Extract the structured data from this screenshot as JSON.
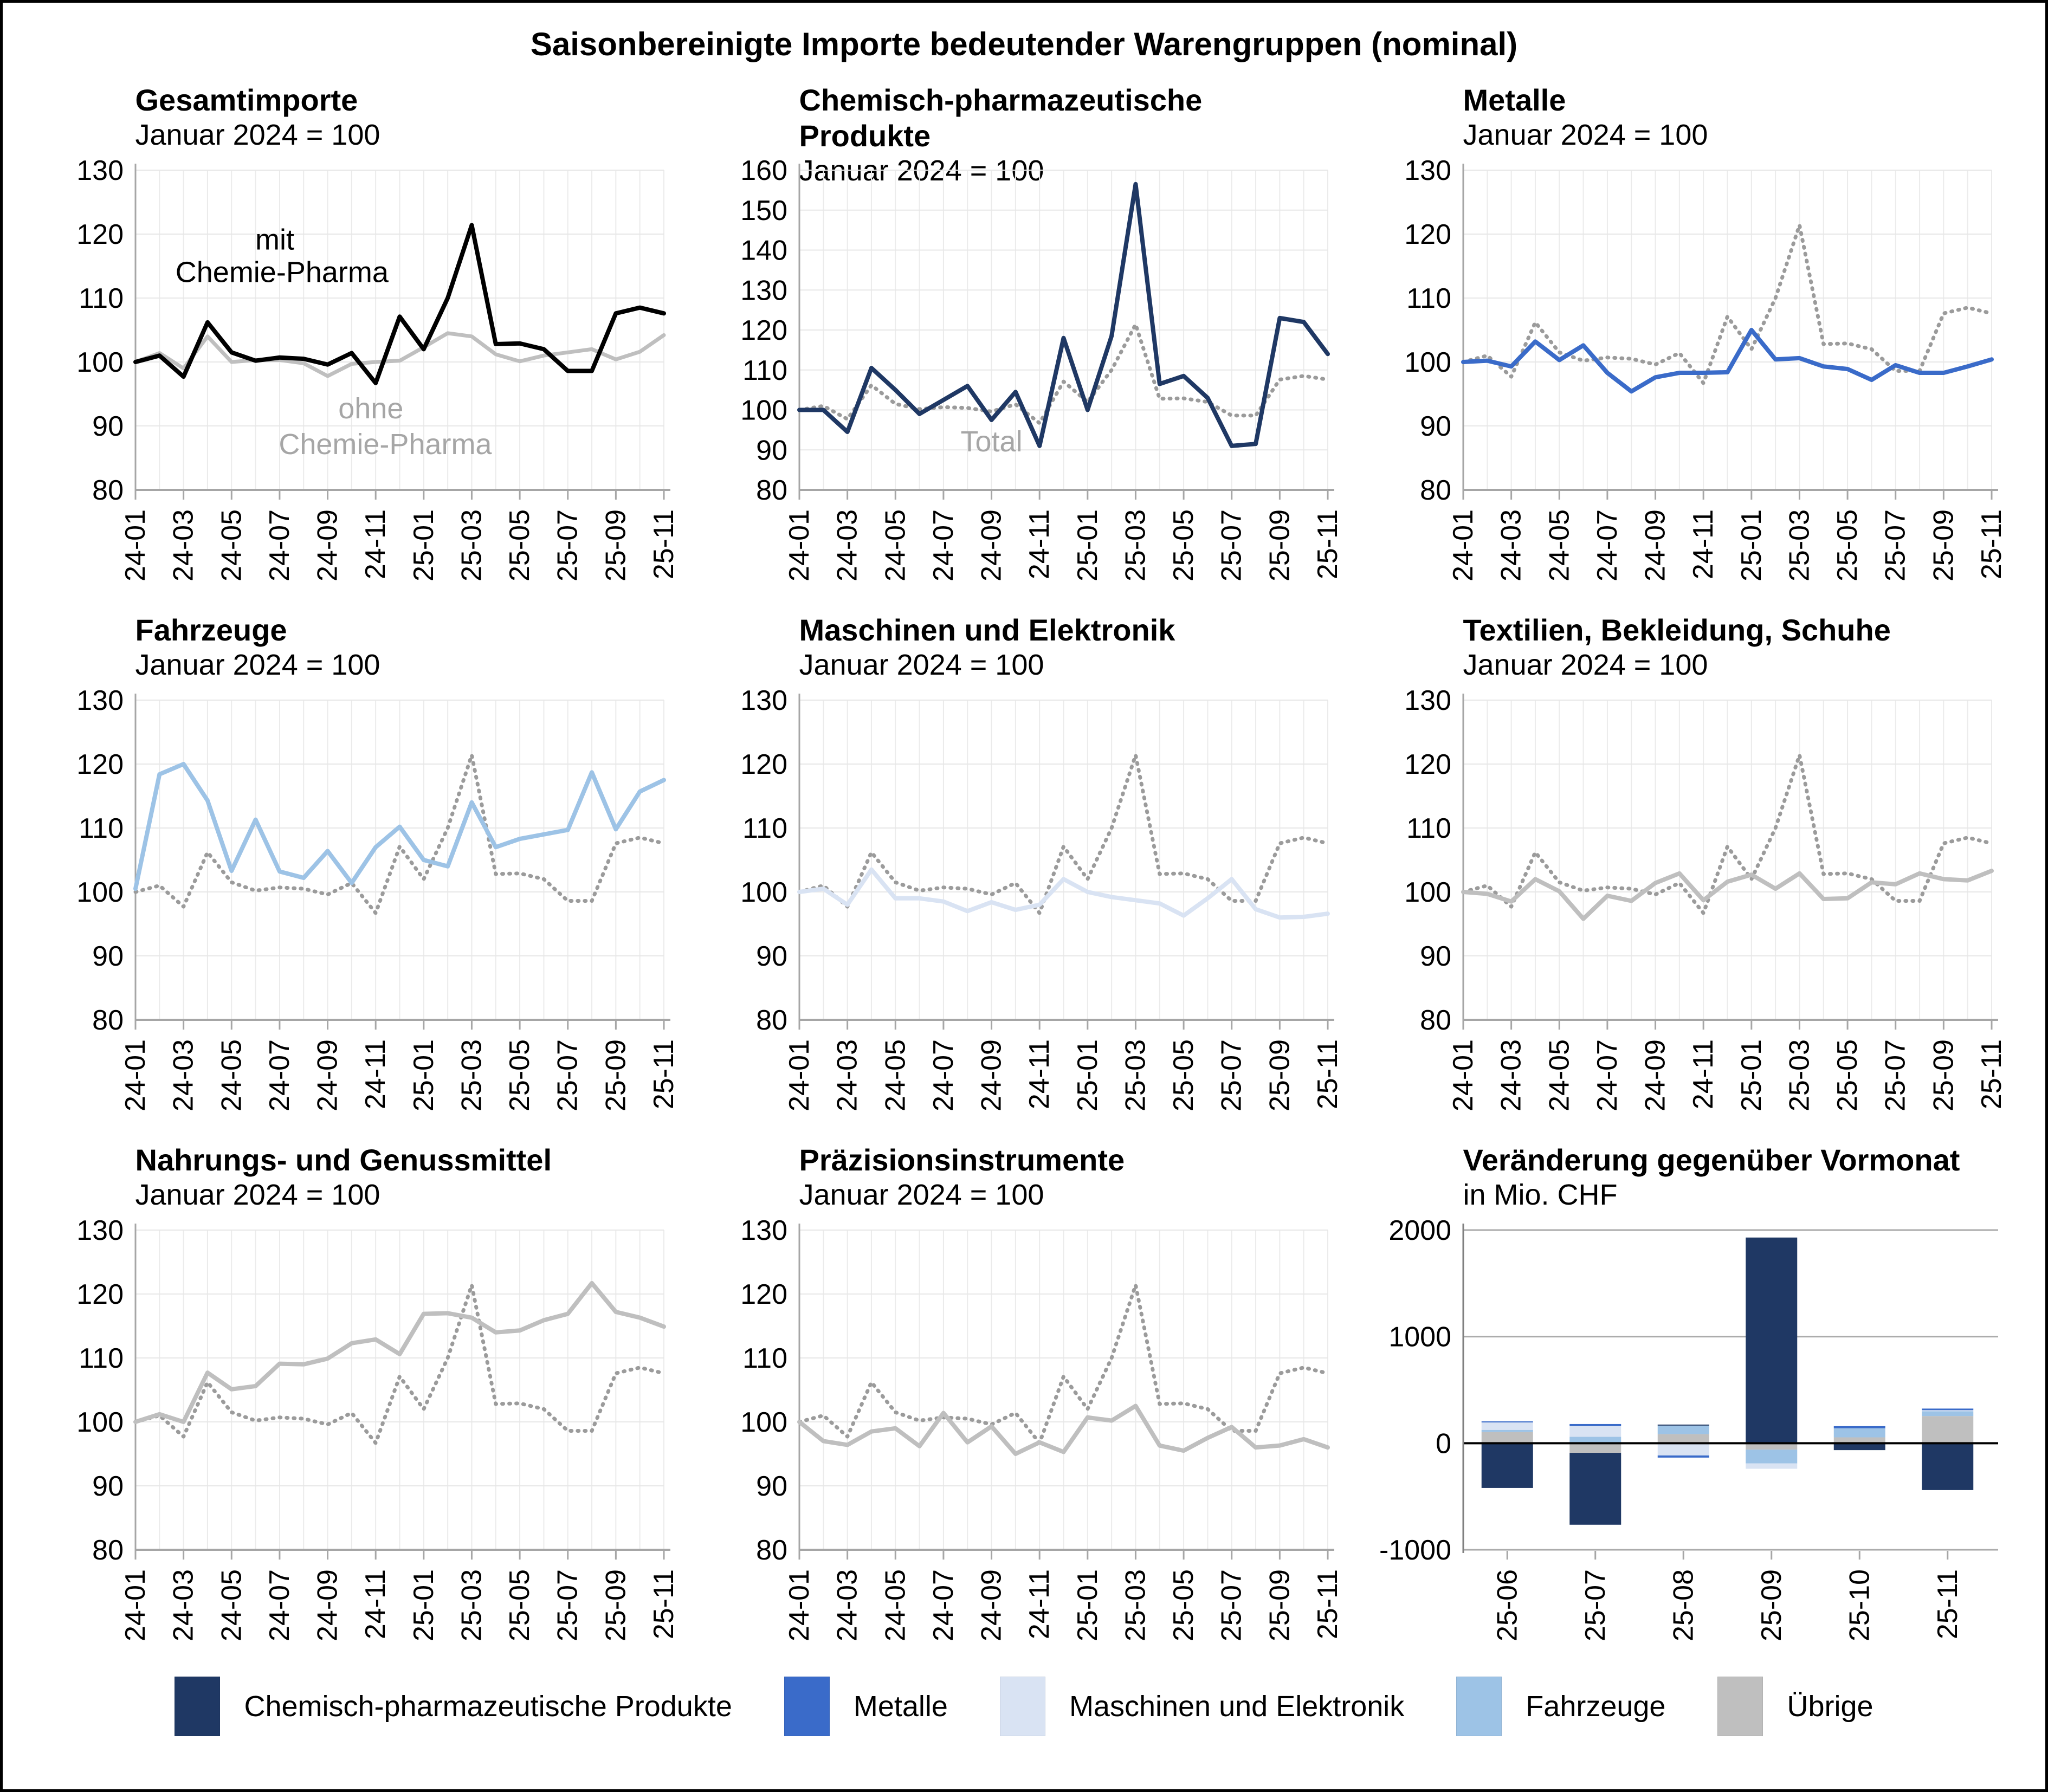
{
  "title": "Saisonbereinigte Importe bedeutender Warengruppen (nominal)",
  "months": [
    "24-01",
    "24-02",
    "24-03",
    "24-04",
    "24-05",
    "24-06",
    "24-07",
    "24-08",
    "24-09",
    "24-10",
    "24-11",
    "24-12",
    "25-01",
    "25-02",
    "25-03",
    "25-04",
    "25-05",
    "25-06",
    "25-07",
    "25-08",
    "25-09",
    "25-10",
    "25-11"
  ],
  "colors": {
    "black": "#000000",
    "navy": "#1F3864",
    "royal_blue": "#3A6BC9",
    "light_blue": "#9DC3E6",
    "pale_blue": "#D9E3F3",
    "gray": "#BFBFBF",
    "dotted_gray": "#9B9B9B",
    "annotation_gray": "#A6A6A6"
  },
  "legend": {
    "items": [
      {
        "label": "Chemisch-pharmazeutische Produkte",
        "color": "#1F3864"
      },
      {
        "label": "Metalle",
        "color": "#3A6BC9"
      },
      {
        "label": "Maschinen und Elektronik",
        "color": "#D9E3F3"
      },
      {
        "label": "Fahrzeuge",
        "color": "#9DC3E6"
      },
      {
        "label": "Übrige",
        "color": "#BFBFBF"
      }
    ]
  },
  "chart_data": [
    {
      "type": "line",
      "title": "Gesamtimporte",
      "subtitle": "Januar 2024 = 100",
      "ylim": [
        80,
        130
      ],
      "yticks": [
        80,
        90,
        100,
        110,
        120,
        130
      ],
      "series": [
        {
          "name": "ohne Chemie-Pharma",
          "color": "#BFBFBF",
          "style": "solid",
          "width": 7,
          "values": [
            100,
            101.4,
            99,
            104,
            100,
            100.3,
            100.3,
            99.8,
            97.8,
            99.7,
            100,
            100.2,
            102.3,
            104.5,
            104,
            101.2,
            100.1,
            101,
            101.5,
            102,
            100.4,
            101.6,
            104.2
          ]
        },
        {
          "name": "mit Chemie-Pharma",
          "color": "#000000",
          "style": "solid",
          "width": 8,
          "values": [
            100,
            101,
            97.7,
            106.2,
            101.5,
            100.2,
            100.7,
            100.5,
            99.6,
            101.4,
            96.7,
            107.1,
            102,
            110,
            121.4,
            102.8,
            102.9,
            102,
            98.6,
            98.6,
            107.6,
            108.5,
            107.6
          ]
        }
      ],
      "annotations": [
        {
          "text": "mit",
          "xi": 5.8,
          "y": 117.6,
          "color": "#000000"
        },
        {
          "text": "Chemie-Pharma",
          "xi": 6.1,
          "y": 112.5,
          "color": "#000000"
        },
        {
          "text": "ohne",
          "xi": 9.8,
          "y": 91.2,
          "color": "#A6A6A6"
        },
        {
          "text": "Chemie-Pharma",
          "xi": 10.4,
          "y": 85.6,
          "color": "#A6A6A6"
        }
      ]
    },
    {
      "type": "line",
      "title": "Chemisch-pharmazeutische Produkte",
      "subtitle": "Januar 2024 = 100",
      "ylim": [
        80,
        160
      ],
      "yticks": [
        80,
        90,
        100,
        110,
        120,
        130,
        140,
        150,
        160
      ],
      "series": [
        {
          "name": "Total",
          "color": "#9B9B9B",
          "style": "dotted",
          "width": 7,
          "values": [
            100,
            101,
            97.7,
            106.2,
            101.5,
            100.2,
            100.7,
            100.5,
            99.6,
            101.4,
            96.7,
            107.1,
            102,
            110,
            121.4,
            102.8,
            102.9,
            102,
            98.6,
            98.6,
            107.6,
            108.5,
            107.6
          ]
        },
        {
          "name": "Chemisch-pharmazeutische Produkte",
          "color": "#1F3864",
          "style": "solid",
          "width": 8,
          "values": [
            100,
            100,
            94.5,
            110.5,
            105,
            99,
            102.5,
            106,
            97.5,
            104.5,
            91,
            118,
            100,
            118.5,
            156.5,
            106.5,
            108.5,
            103,
            91,
            91.5,
            123,
            122,
            114
          ]
        }
      ],
      "annotations": [
        {
          "text": "Total",
          "xi": 8.0,
          "y": 89.6,
          "color": "#A6A6A6"
        }
      ]
    },
    {
      "type": "line",
      "title": "Metalle",
      "subtitle": "Januar 2024 = 100",
      "ylim": [
        80,
        130
      ],
      "yticks": [
        80,
        90,
        100,
        110,
        120,
        130
      ],
      "series": [
        {
          "name": "Total",
          "color": "#9B9B9B",
          "style": "dotted",
          "width": 7,
          "values": [
            100,
            101,
            97.7,
            106.2,
            101.5,
            100.2,
            100.7,
            100.5,
            99.6,
            101.4,
            96.7,
            107.1,
            102,
            110,
            121.4,
            102.8,
            102.9,
            102,
            98.6,
            98.6,
            107.6,
            108.5,
            107.6
          ]
        },
        {
          "name": "Metalle",
          "color": "#3A6BC9",
          "style": "solid",
          "width": 8,
          "values": [
            100,
            100.2,
            99.3,
            103.2,
            100.3,
            102.6,
            98.3,
            95.4,
            97.6,
            98.3,
            98.3,
            98.4,
            105,
            100.4,
            100.6,
            99.3,
            98.9,
            97.2,
            99.5,
            98.3,
            98.3,
            99.3,
            100.4
          ]
        }
      ],
      "annotations": []
    },
    {
      "type": "line",
      "title": "Fahrzeuge",
      "subtitle": "Januar 2024 = 100",
      "ylim": [
        80,
        130
      ],
      "yticks": [
        80,
        90,
        100,
        110,
        120,
        130
      ],
      "series": [
        {
          "name": "Total",
          "color": "#9B9B9B",
          "style": "dotted",
          "width": 7,
          "values": [
            100,
            101,
            97.7,
            106.2,
            101.5,
            100.2,
            100.7,
            100.5,
            99.6,
            101.4,
            96.7,
            107.1,
            102,
            110,
            121.4,
            102.8,
            102.9,
            102,
            98.6,
            98.6,
            107.6,
            108.5,
            107.6
          ]
        },
        {
          "name": "Fahrzeuge",
          "color": "#9DC3E6",
          "style": "solid",
          "width": 8,
          "values": [
            100.5,
            118.4,
            120,
            114.3,
            103.3,
            111.3,
            103.2,
            102.2,
            106.4,
            101.4,
            107,
            110.2,
            105,
            104,
            114,
            107,
            108.3,
            109,
            109.7,
            118.7,
            109.8,
            115.7,
            117.5
          ]
        }
      ],
      "annotations": []
    },
    {
      "type": "line",
      "title": "Maschinen und Elektronik",
      "subtitle": "Januar 2024 = 100",
      "ylim": [
        80,
        130
      ],
      "yticks": [
        80,
        90,
        100,
        110,
        120,
        130
      ],
      "series": [
        {
          "name": "Total",
          "color": "#9B9B9B",
          "style": "dotted",
          "width": 7,
          "values": [
            100,
            101,
            97.7,
            106.2,
            101.5,
            100.2,
            100.7,
            100.5,
            99.6,
            101.4,
            96.7,
            107.1,
            102,
            110,
            121.4,
            102.8,
            102.9,
            102,
            98.6,
            98.6,
            107.6,
            108.5,
            107.6
          ]
        },
        {
          "name": "Maschinen und Elektronik",
          "color": "#D9E3F3",
          "style": "solid",
          "width": 8,
          "values": [
            100,
            100.5,
            98,
            103.5,
            99,
            99,
            98.5,
            97,
            98.4,
            97.2,
            98,
            102,
            100,
            99.2,
            98.7,
            98.2,
            96.3,
            99,
            102,
            97.3,
            96,
            96.1,
            96.6
          ]
        }
      ],
      "annotations": []
    },
    {
      "type": "line",
      "title": "Textilien, Bekleidung, Schuhe",
      "subtitle": "Januar 2024 = 100",
      "ylim": [
        80,
        130
      ],
      "yticks": [
        80,
        90,
        100,
        110,
        120,
        130
      ],
      "series": [
        {
          "name": "Total",
          "color": "#9B9B9B",
          "style": "dotted",
          "width": 7,
          "values": [
            100,
            101,
            97.7,
            106.2,
            101.5,
            100.2,
            100.7,
            100.5,
            99.6,
            101.4,
            96.7,
            107.1,
            102,
            110,
            121.4,
            102.8,
            102.9,
            102,
            98.6,
            98.6,
            107.6,
            108.5,
            107.6
          ]
        },
        {
          "name": "Textilien, Bekleidung, Schuhe",
          "color": "#BFBFBF",
          "style": "solid",
          "width": 8,
          "values": [
            100,
            99.7,
            98.5,
            102,
            100.1,
            95.8,
            99.4,
            98.6,
            101.4,
            102.9,
            98.7,
            101.6,
            102.7,
            100.5,
            102.9,
            98.9,
            99,
            101.5,
            101.2,
            102.9,
            102,
            101.8,
            103.3
          ]
        }
      ],
      "annotations": []
    },
    {
      "type": "line",
      "title": "Nahrungs- und Genussmittel",
      "subtitle": "Januar 2024 = 100",
      "ylim": [
        80,
        130
      ],
      "yticks": [
        80,
        90,
        100,
        110,
        120,
        130
      ],
      "series": [
        {
          "name": "Total",
          "color": "#9B9B9B",
          "style": "dotted",
          "width": 7,
          "values": [
            100,
            101,
            97.7,
            106.2,
            101.5,
            100.2,
            100.7,
            100.5,
            99.6,
            101.4,
            96.7,
            107.1,
            102,
            110,
            121.4,
            102.8,
            102.9,
            102,
            98.6,
            98.6,
            107.6,
            108.5,
            107.6
          ]
        },
        {
          "name": "Nahrungs- und Genussmittel",
          "color": "#BFBFBF",
          "style": "solid",
          "width": 8,
          "values": [
            100,
            101.2,
            100,
            107.7,
            105.1,
            105.6,
            109.1,
            109,
            109.9,
            112.3,
            112.9,
            110.6,
            116.9,
            117,
            116.3,
            114,
            114.3,
            115.9,
            116.9,
            121.7,
            117.2,
            116.3,
            114.9
          ]
        }
      ],
      "annotations": []
    },
    {
      "type": "line",
      "title": "Präzisionsinstrumente",
      "subtitle": "Januar 2024 = 100",
      "ylim": [
        80,
        130
      ],
      "yticks": [
        80,
        90,
        100,
        110,
        120,
        130
      ],
      "series": [
        {
          "name": "Total",
          "color": "#9B9B9B",
          "style": "dotted",
          "width": 7,
          "values": [
            100,
            101,
            97.7,
            106.2,
            101.5,
            100.2,
            100.7,
            100.5,
            99.6,
            101.4,
            96.7,
            107.1,
            102,
            110,
            121.4,
            102.8,
            102.9,
            102,
            98.6,
            98.6,
            107.6,
            108.5,
            107.6
          ]
        },
        {
          "name": "Präzisionsinstrumente",
          "color": "#BFBFBF",
          "style": "solid",
          "width": 8,
          "values": [
            100,
            97,
            96.4,
            98.5,
            99,
            96.2,
            101.4,
            96.8,
            99.3,
            95,
            96.8,
            95.3,
            100.7,
            100.2,
            102.5,
            96.3,
            95.5,
            97.5,
            99.2,
            96,
            96.3,
            97.3,
            96
          ]
        }
      ],
      "annotations": []
    },
    {
      "type": "stacked_bar",
      "title": "Veränderung gegenüber Vormonat",
      "subtitle": "in Mio. CHF",
      "categories": [
        "25-06",
        "25-07",
        "25-08",
        "25-09",
        "25-10",
        "25-11"
      ],
      "ylim": [
        -1000,
        2000
      ],
      "yticks": [
        -1000,
        0,
        1000,
        2000
      ],
      "stack_order_from_zero": [
        "Übrige",
        "Fahrzeuge",
        "Maschinen und Elektronik",
        "Metalle",
        "Chemisch-pharmazeutische Produkte"
      ],
      "series": [
        {
          "name": "Chemisch-pharmazeutische Produkte",
          "color": "#1F3864",
          "values": [
            -420,
            -675,
            10,
            1930,
            -65,
            -440
          ]
        },
        {
          "name": "Metalle",
          "color": "#3A6BC9",
          "values": [
            10,
            20,
            -20,
            0,
            20,
            15
          ]
        },
        {
          "name": "Maschinen und Elektronik",
          "color": "#D9E3F3",
          "values": [
            70,
            100,
            -115,
            -50,
            0,
            10
          ]
        },
        {
          "name": "Fahrzeuge",
          "color": "#9DC3E6",
          "values": [
            20,
            60,
            80,
            -130,
            85,
            45
          ]
        },
        {
          "name": "Übrige",
          "color": "#BFBFBF",
          "values": [
            105,
            -90,
            85,
            -60,
            55,
            255
          ]
        }
      ]
    }
  ]
}
